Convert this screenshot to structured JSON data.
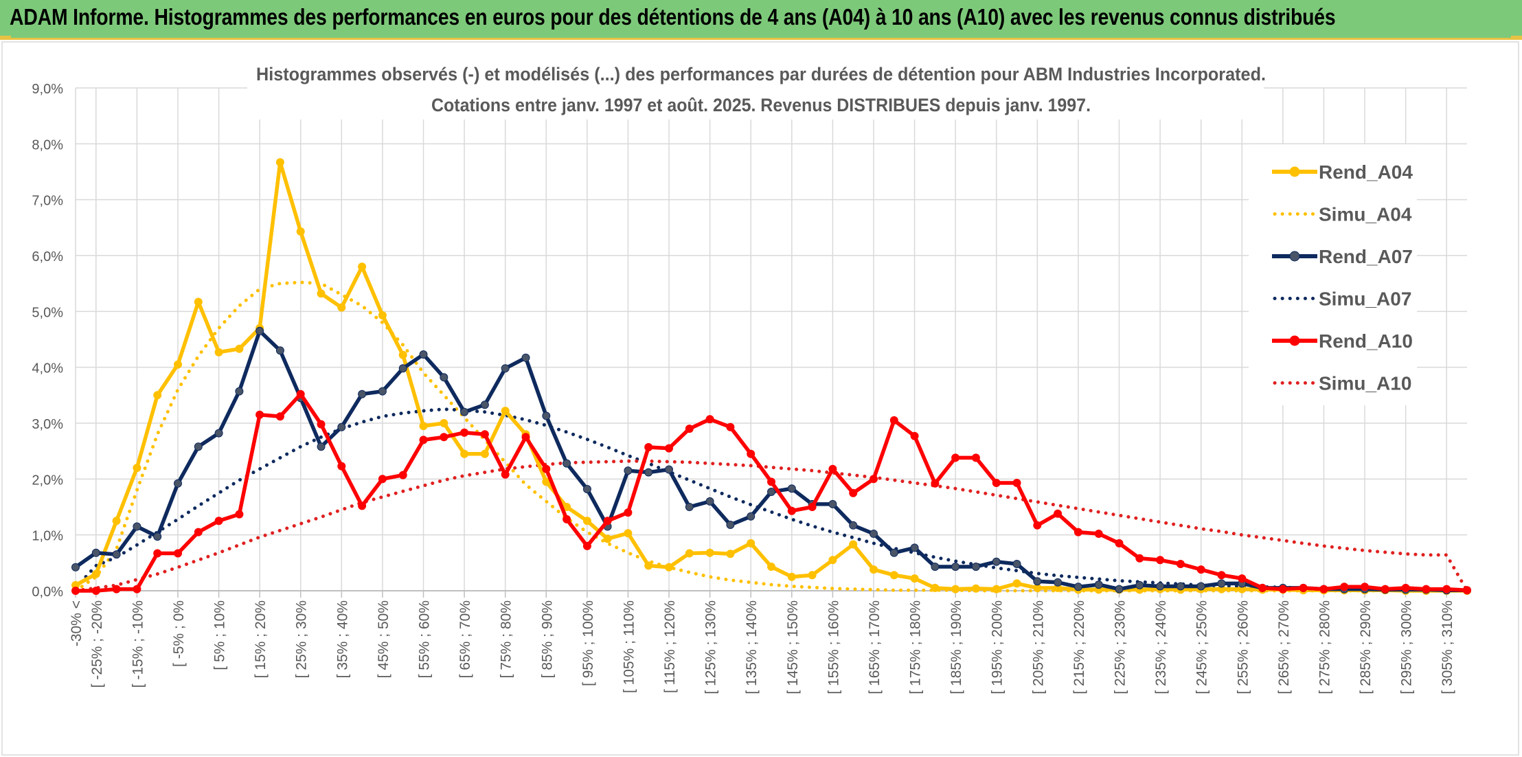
{
  "banner": {
    "title": "ADAM Informe. Histogrammes des performances en euros pour des détentions de 4 ans (A04) à 10 ans (A10) avec les revenus connus distribués"
  },
  "chart_data": {
    "type": "line",
    "title": "Histogrammes observés (-) et modélisés (...) des performances par durées de détention pour ABM Industries Incorporated.",
    "subtitle": "Cotations entre janv. 1997 et août. 2025. Revenus DISTRIBUES depuis janv. 1997.",
    "xlabel": "",
    "ylabel": "",
    "ylim": [
      0,
      0.09
    ],
    "y_ticks": [
      "0,0%",
      "1,0%",
      "2,0%",
      "3,0%",
      "4,0%",
      "5,0%",
      "6,0%",
      "7,0%",
      "8,0%",
      "9,0%"
    ],
    "grid": true,
    "legend_position": "right",
    "x_tick_labels": [
      "-30% <",
      "[ -25% ; -20%",
      "[ -15% ; -10%",
      "[ -5% ; 0%",
      "[ 5% ; 10%",
      "[ 15% ; 20%",
      "[ 25% ; 30%",
      "[ 35% ; 40%",
      "[ 45% ; 50%",
      "[ 55% ; 60%",
      "[ 65% ; 70%",
      "[ 75% ; 80%",
      "[ 85% ; 90%",
      "[ 95% ; 100%",
      "[ 105% ; 110%",
      "[ 115% ; 120%",
      "[ 125% ; 130%",
      "[ 135% ; 140%",
      "[ 145% ; 150%",
      "[ 155% ; 160%",
      "[ 165% ; 170%",
      "[ 175% ; 180%",
      "[ 185% ; 190%",
      "[ 195% ; 200%",
      "[ 205% ; 210%",
      "[ 215% ; 220%",
      "[ 225% ; 230%",
      "[ 235% ; 240%",
      "[ 245% ; 250%",
      "[ 255% ; 260%",
      "[ 265% ; 270%",
      "[ 275% ; 280%",
      "[ 285% ; 290%",
      "[ 295% ; 300%",
      "[ 305% ; 310%"
    ],
    "x_tick_indices": [
      0,
      1,
      3,
      5,
      7,
      9,
      11,
      13,
      15,
      17,
      19,
      21,
      23,
      25,
      27,
      29,
      31,
      33,
      35,
      37,
      39,
      41,
      43,
      45,
      47,
      49,
      51,
      53,
      55,
      57,
      59,
      61,
      63,
      65,
      67
    ],
    "n_categories": 69,
    "series": [
      {
        "name": "Rend_A04",
        "style": "solid",
        "color": "#ffc000",
        "marker": "#ffc000",
        "values": [
          0.001,
          0.003,
          0.0125,
          0.022,
          0.035,
          0.0405,
          0.0517,
          0.0427,
          0.0433,
          0.047,
          0.0767,
          0.0643,
          0.0532,
          0.0507,
          0.058,
          0.0493,
          0.0422,
          0.0295,
          0.03,
          0.0245,
          0.0245,
          0.0322,
          0.028,
          0.0195,
          0.015,
          0.0125,
          0.0093,
          0.0103,
          0.0045,
          0.0042,
          0.0067,
          0.0068,
          0.0066,
          0.0085,
          0.0043,
          0.0025,
          0.0028,
          0.0055,
          0.0083,
          0.0038,
          0.0028,
          0.0022,
          0.0005,
          0.0003,
          0.0004,
          0.0003,
          0.0013,
          0.0005,
          0.0005,
          0.0002,
          0.0002,
          0.0002,
          0.0002,
          0.0003,
          0.0002,
          0.0003,
          0.0003,
          0.0003,
          0.0002,
          0.0002,
          0.0001,
          0.0001,
          0.0001,
          0.0001,
          0.0001,
          0.0,
          0.0,
          0.0,
          0.0
        ]
      },
      {
        "name": "Simu_A04",
        "style": "dotted",
        "color": "#ffc000",
        "values": [
          0.0,
          0.0025,
          0.0075,
          0.018,
          0.028,
          0.036,
          0.042,
          0.047,
          0.051,
          0.054,
          0.055,
          0.0552,
          0.055,
          0.053,
          0.051,
          0.048,
          0.044,
          0.039,
          0.035,
          0.031,
          0.027,
          0.023,
          0.019,
          0.016,
          0.013,
          0.0105,
          0.0085,
          0.0068,
          0.0053,
          0.0042,
          0.0033,
          0.0025,
          0.0019,
          0.0015,
          0.0011,
          0.0008,
          0.0006,
          0.0004,
          0.0003,
          0.0002,
          0.0001,
          0.0001,
          0.0001,
          0.0001,
          0.0,
          0.0,
          0.0,
          0.0,
          0.0,
          0.0,
          0.0,
          0.0,
          0.0,
          0.0,
          0.0,
          0.0,
          0.0,
          0.0,
          0.0,
          0.0,
          0.0,
          0.0,
          0.0,
          0.0,
          0.0,
          0.0,
          0.0,
          0.0,
          0.0
        ]
      },
      {
        "name": "Rend_A07",
        "style": "solid",
        "color": "#0e2a5e",
        "marker": "#4a5568",
        "values": [
          0.0042,
          0.0068,
          0.0065,
          0.0115,
          0.0097,
          0.0192,
          0.0258,
          0.0282,
          0.0357,
          0.0465,
          0.043,
          0.0345,
          0.0258,
          0.0293,
          0.0352,
          0.0357,
          0.0398,
          0.0423,
          0.0382,
          0.032,
          0.0333,
          0.0398,
          0.0417,
          0.0313,
          0.0228,
          0.0182,
          0.0115,
          0.0215,
          0.0212,
          0.0217,
          0.015,
          0.016,
          0.0118,
          0.0133,
          0.0177,
          0.0183,
          0.0155,
          0.0155,
          0.0117,
          0.0102,
          0.0068,
          0.0077,
          0.0043,
          0.0043,
          0.0043,
          0.0052,
          0.0048,
          0.0017,
          0.0015,
          0.0007,
          0.0011,
          0.0003,
          0.001,
          0.0008,
          0.0008,
          0.0008,
          0.0013,
          0.0013,
          0.0005,
          0.0005,
          0.0005,
          0.0003,
          0.0003,
          0.0003,
          0.0002,
          0.0002,
          0.0002,
          0.0001,
          0.0001
        ]
      },
      {
        "name": "Simu_A07",
        "style": "dotted",
        "color": "#0e2a5e",
        "values": [
          0.0005,
          0.0045,
          0.006,
          0.0082,
          0.0105,
          0.0128,
          0.0152,
          0.0175,
          0.0198,
          0.0218,
          0.0238,
          0.0258,
          0.0275,
          0.029,
          0.0302,
          0.0312,
          0.0318,
          0.0322,
          0.0325,
          0.0323,
          0.032,
          0.0314,
          0.0306,
          0.0296,
          0.0284,
          0.0271,
          0.0257,
          0.0242,
          0.0228,
          0.0213,
          0.0198,
          0.0183,
          0.0168,
          0.0154,
          0.0141,
          0.0128,
          0.0116,
          0.0105,
          0.0095,
          0.0085,
          0.0076,
          0.0068,
          0.006,
          0.0053,
          0.0047,
          0.0041,
          0.0036,
          0.0031,
          0.0027,
          0.0024,
          0.0021,
          0.0018,
          0.0016,
          0.0014,
          0.0012,
          0.001,
          0.0009,
          0.0008,
          0.0007,
          0.0006,
          0.0005,
          0.0004,
          0.0004,
          0.0003,
          0.0003,
          0.0002,
          0.0002,
          0.0002,
          0.0001
        ]
      },
      {
        "name": "Rend_A10",
        "style": "solid",
        "color": "#ff0000",
        "marker": "#ff0000",
        "values": [
          0.0,
          0.0,
          0.0003,
          0.0003,
          0.0067,
          0.0067,
          0.0105,
          0.0125,
          0.0137,
          0.0315,
          0.0312,
          0.0352,
          0.0298,
          0.0223,
          0.0152,
          0.02,
          0.0207,
          0.027,
          0.0275,
          0.0283,
          0.028,
          0.0208,
          0.0275,
          0.0218,
          0.0128,
          0.008,
          0.0125,
          0.014,
          0.0257,
          0.0255,
          0.029,
          0.0307,
          0.0293,
          0.0245,
          0.0195,
          0.0143,
          0.015,
          0.0218,
          0.0175,
          0.02,
          0.0305,
          0.0277,
          0.0192,
          0.0238,
          0.0238,
          0.0193,
          0.0193,
          0.0117,
          0.0138,
          0.0105,
          0.0102,
          0.0085,
          0.0058,
          0.0055,
          0.0048,
          0.0038,
          0.0028,
          0.0022,
          0.0005,
          0.0003,
          0.0005,
          0.0003,
          0.0007,
          0.0007,
          0.0003,
          0.0005,
          0.0003,
          0.0003,
          0.0001
        ]
      },
      {
        "name": "Simu_A10",
        "style": "dotted",
        "color": "#e02020",
        "values": [
          0.0,
          0.0005,
          0.001,
          0.002,
          0.003,
          0.0042,
          0.0055,
          0.0068,
          0.0082,
          0.0096,
          0.0108,
          0.012,
          0.0132,
          0.0145,
          0.0158,
          0.0168,
          0.0178,
          0.0188,
          0.0198,
          0.0206,
          0.0212,
          0.0218,
          0.0222,
          0.0226,
          0.0229,
          0.023,
          0.0231,
          0.0232,
          0.0232,
          0.0231,
          0.023,
          0.0228,
          0.0226,
          0.0224,
          0.0221,
          0.0218,
          0.0215,
          0.0211,
          0.0207,
          0.0203,
          0.0198,
          0.0193,
          0.0188,
          0.0183,
          0.0177,
          0.0171,
          0.0165,
          0.0159,
          0.0153,
          0.0147,
          0.0141,
          0.0135,
          0.0129,
          0.0123,
          0.0117,
          0.0111,
          0.0106,
          0.01,
          0.0095,
          0.009,
          0.0085,
          0.008,
          0.0076,
          0.0072,
          0.0069,
          0.0066,
          0.0064,
          0.0064,
          0.0
        ]
      }
    ]
  }
}
